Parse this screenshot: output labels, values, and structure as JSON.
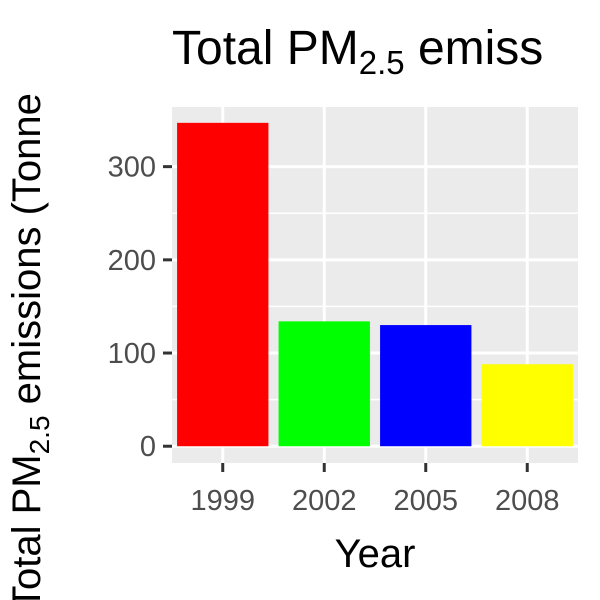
{
  "chart_data": {
    "type": "bar",
    "title_parts": {
      "pre": "Total PM",
      "sub": "2.5",
      "post": " emiss"
    },
    "xlabel": "Year",
    "ylabel_parts": {
      "pre": "Total PM",
      "sub": "2.5",
      "post": " emissions (Tonne"
    },
    "categories": [
      "1999",
      "2002",
      "2005",
      "2008"
    ],
    "values": [
      347,
      134,
      130,
      88
    ],
    "bar_colors": [
      "#FF0000",
      "#00FF00",
      "#0000FF",
      "#FFFF00"
    ],
    "ylim": [
      -18,
      364
    ],
    "y_ticks": [
      0,
      100,
      200,
      300
    ],
    "y_tick_labels": [
      "0",
      "100",
      "200",
      "300"
    ],
    "grid": true,
    "panel_background": "#EBEBEB",
    "grid_color": "#FFFFFF"
  }
}
